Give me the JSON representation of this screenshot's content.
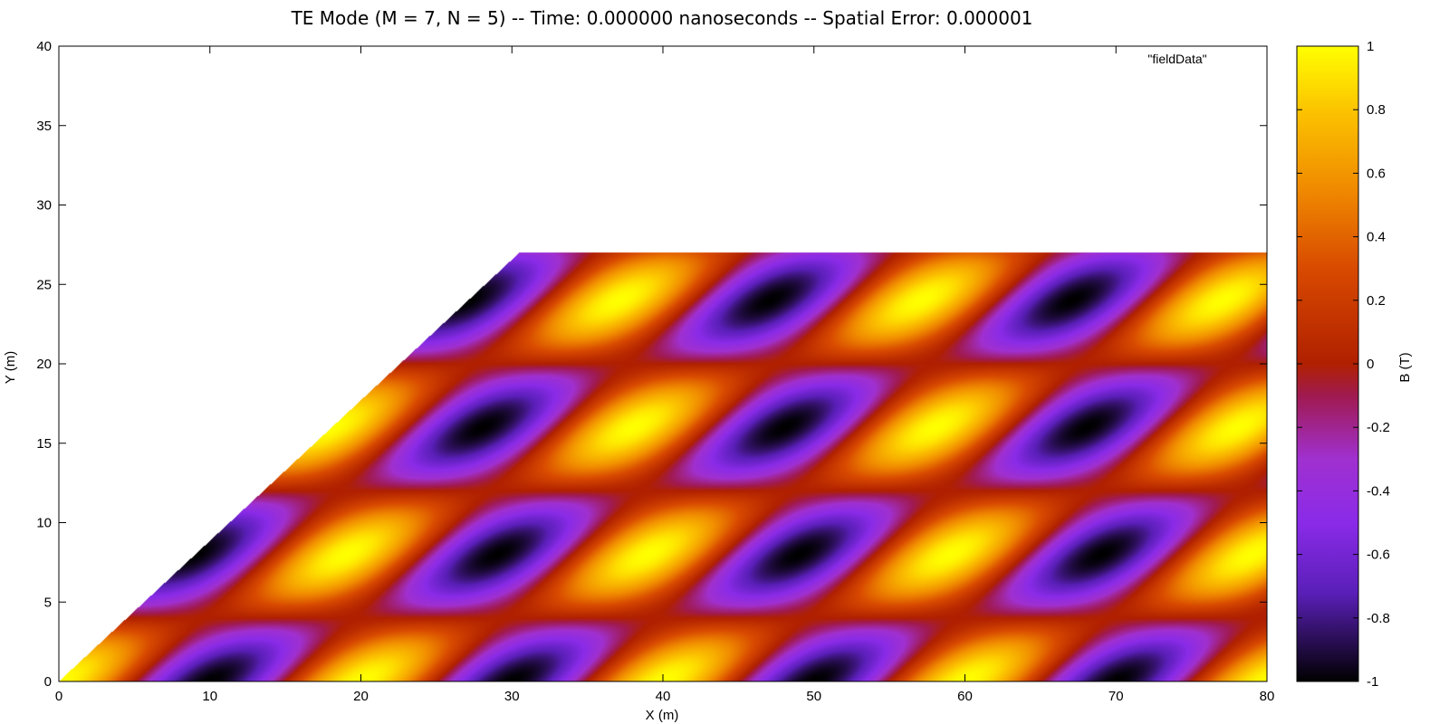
{
  "chart_data": {
    "type": "heatmap",
    "title": "TE Mode (M = 7, N = 5) -- Time: 0.000000 nanoseconds -- Spatial Error: 0.000001",
    "xlabel": "X (m)",
    "ylabel": "Y (m)",
    "xlim": [
      0,
      80
    ],
    "ylim": [
      0,
      40
    ],
    "xticks": [
      "0",
      "10",
      "20",
      "30",
      "40",
      "50",
      "60",
      "70",
      "80"
    ],
    "yticks": [
      "0",
      "5",
      "10",
      "15",
      "20",
      "25",
      "30",
      "35",
      "40"
    ],
    "legend": {
      "entries": [
        "\"fieldData\""
      ],
      "placement": "top-right"
    },
    "colorbar": {
      "label": "B (T)",
      "range": [
        -1,
        1
      ],
      "ticks": [
        "-1",
        "-0.8",
        "-0.6",
        "-0.4",
        "-0.2",
        "0",
        "0.2",
        "0.4",
        "0.6",
        "0.8",
        "1"
      ],
      "stops": [
        {
          "value": -1.0,
          "color": "#000000"
        },
        {
          "value": -0.72,
          "color": "#5a1fb8"
        },
        {
          "value": -0.5,
          "color": "#8a2be8"
        },
        {
          "value": -0.3,
          "color": "#a030d0"
        },
        {
          "value": -0.1,
          "color": "#a01a50"
        },
        {
          "value": 0.0,
          "color": "#b02000"
        },
        {
          "value": 0.3,
          "color": "#d84a00"
        },
        {
          "value": 0.55,
          "color": "#f08a00"
        },
        {
          "value": 0.8,
          "color": "#fcc400"
        },
        {
          "value": 1.0,
          "color": "#ffff00"
        }
      ]
    },
    "field": {
      "description_of_domain": "parallelogram: bottom edge y=0 from x=0 to x=80, top edge y=27 from x=30.5 to x=80",
      "domain_top_y": 27,
      "domain_left_top_x": 30.5,
      "mode_m": 7,
      "mode_n": 5,
      "sheared_period_x": 20,
      "shear_dx_per_dy": 1.1296,
      "row_period_y": 8,
      "row_offset_y": 4
    }
  }
}
